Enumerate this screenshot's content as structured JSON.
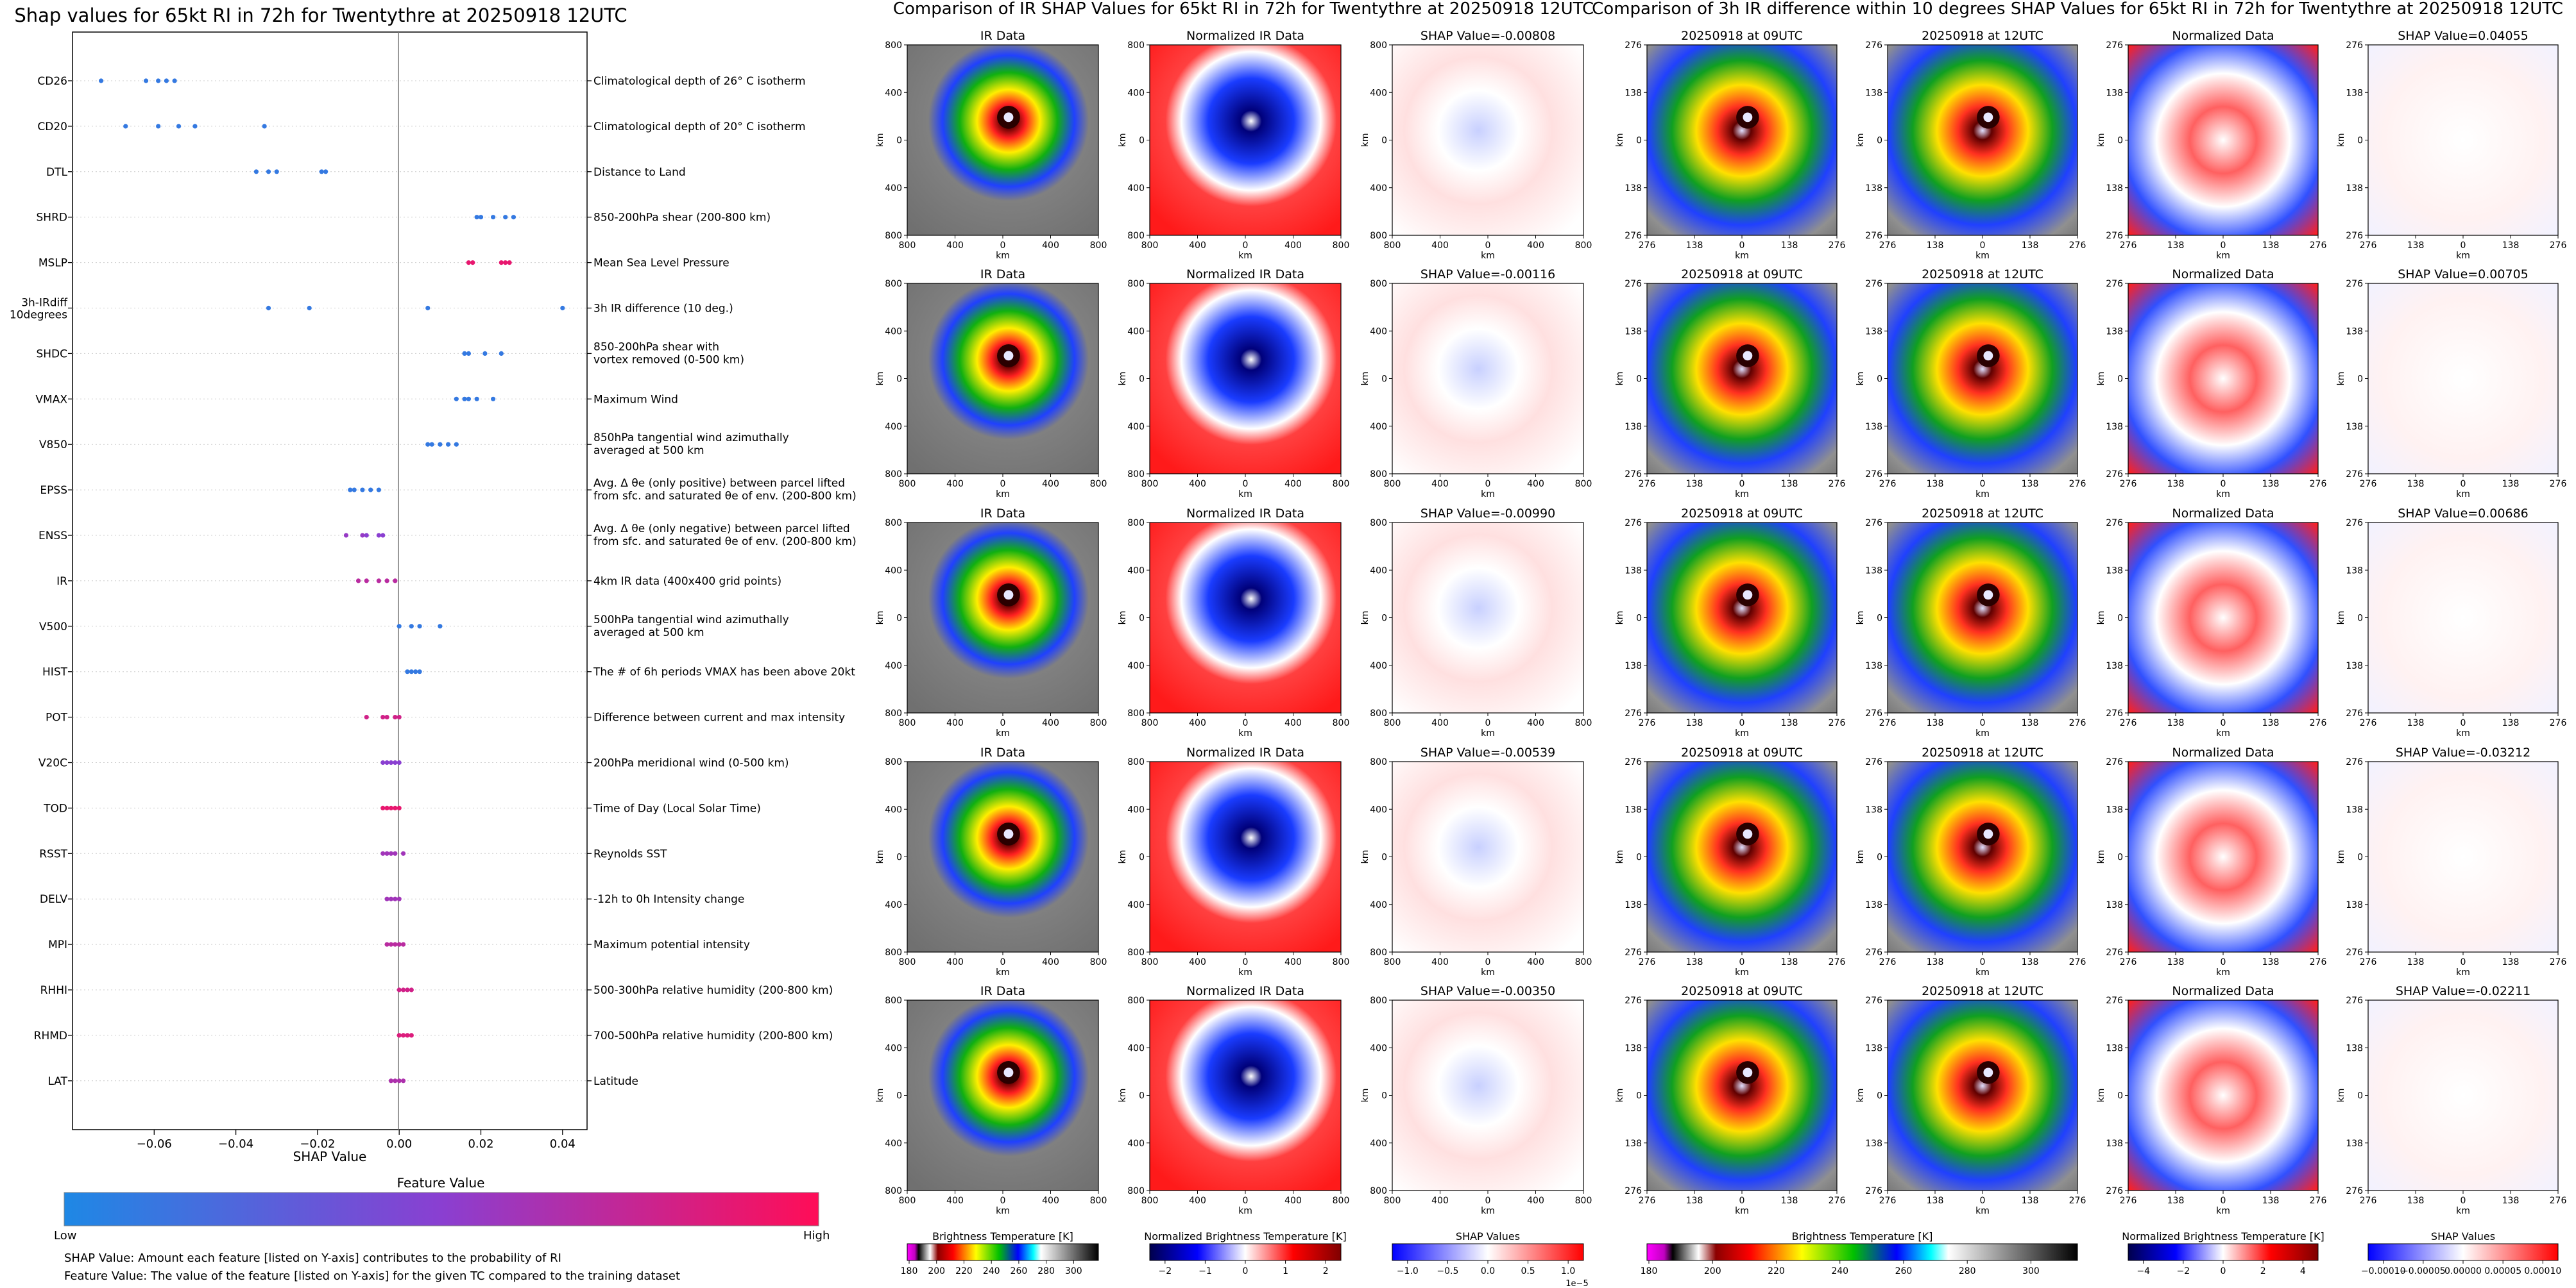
{
  "shap_panel": {
    "title": "Shap values for 65kt RI in 72h for Twentythre at 20250918 12UTC",
    "xlabel": "SHAP Value",
    "xticks": [
      "−0.06",
      "−0.04",
      "−0.02",
      "0.00",
      "0.02",
      "0.04"
    ],
    "colorbar_title": "Feature Value",
    "colorbar_low": "Low",
    "colorbar_high": "High",
    "colors": {
      "low": "#1e88e5",
      "mid": "#8a3fd1",
      "high": "#ff0d57"
    },
    "note1": "SHAP Value: Amount each feature [listed on Y-axis] contributes to the probability of RI",
    "note2": "Feature Value: The value of the feature [listed on Y-axis] for the given TC compared to the training dataset"
  },
  "chart_data": [
    {
      "type": "scatter",
      "title": "Shap values for 65kt RI in 72h for Twentythre at 20250918 12UTC",
      "xlabel": "SHAP Value",
      "xlim": [
        -0.08,
        0.046
      ],
      "features": [
        {
          "name": "CD26",
          "desc": [
            "Climatological depth of 26° C isotherm"
          ],
          "points": [
            [
              -0.073,
              0.1
            ],
            [
              -0.062,
              0.1
            ],
            [
              -0.059,
              0.1
            ],
            [
              -0.057,
              0.1
            ],
            [
              -0.055,
              0.1
            ]
          ]
        },
        {
          "name": "CD20",
          "desc": [
            "Climatological depth of 20° C isotherm"
          ],
          "points": [
            [
              -0.067,
              0.1
            ],
            [
              -0.059,
              0.1
            ],
            [
              -0.054,
              0.1
            ],
            [
              -0.05,
              0.1
            ],
            [
              -0.033,
              0.1
            ]
          ]
        },
        {
          "name": "DTL",
          "desc": [
            "Distance to Land"
          ],
          "points": [
            [
              -0.035,
              0.1
            ],
            [
              -0.032,
              0.1
            ],
            [
              -0.03,
              0.1
            ],
            [
              -0.019,
              0.1
            ],
            [
              -0.018,
              0.1
            ]
          ]
        },
        {
          "name": "SHRD",
          "desc": [
            "850-200hPa shear (200-800 km)"
          ],
          "points": [
            [
              0.019,
              0.1
            ],
            [
              0.02,
              0.1
            ],
            [
              0.023,
              0.1
            ],
            [
              0.026,
              0.1
            ],
            [
              0.028,
              0.1
            ]
          ]
        },
        {
          "name": "MSLP",
          "desc": [
            "Mean Sea Level Pressure"
          ],
          "points": [
            [
              0.017,
              0.9
            ],
            [
              0.018,
              0.9
            ],
            [
              0.025,
              0.9
            ],
            [
              0.026,
              0.9
            ],
            [
              0.027,
              0.9
            ]
          ]
        },
        {
          "name": "3h-IRdiff",
          "name2": "10degrees",
          "desc": [
            "3h IR difference (10 deg.)"
          ],
          "points": [
            [
              -0.032,
              0.1
            ],
            [
              -0.022,
              0.1
            ],
            [
              0.007,
              0.1
            ],
            [
              0.04,
              0.1
            ]
          ]
        },
        {
          "name": "SHDC",
          "desc": [
            "850-200hPa shear with",
            "vortex removed (0-500 km)"
          ],
          "points": [
            [
              0.016,
              0.1
            ],
            [
              0.017,
              0.1
            ],
            [
              0.021,
              0.1
            ],
            [
              0.025,
              0.1
            ]
          ]
        },
        {
          "name": "VMAX",
          "desc": [
            "Maximum Wind"
          ],
          "points": [
            [
              0.014,
              0.1
            ],
            [
              0.016,
              0.1
            ],
            [
              0.017,
              0.1
            ],
            [
              0.019,
              0.1
            ],
            [
              0.023,
              0.1
            ]
          ]
        },
        {
          "name": "V850",
          "desc": [
            "850hPa tangential wind azimuthally",
            "averaged at 500 km"
          ],
          "points": [
            [
              0.007,
              0.1
            ],
            [
              0.008,
              0.1
            ],
            [
              0.01,
              0.1
            ],
            [
              0.012,
              0.1
            ],
            [
              0.014,
              0.1
            ]
          ]
        },
        {
          "name": "EPSS",
          "desc": [
            "Avg. Δ θe (only positive) between parcel lifted",
            "from sfc. and saturated θe of env. (200-800 km)"
          ],
          "points": [
            [
              -0.012,
              0.1
            ],
            [
              -0.011,
              0.1
            ],
            [
              -0.009,
              0.1
            ],
            [
              -0.007,
              0.1
            ],
            [
              -0.005,
              0.1
            ]
          ]
        },
        {
          "name": "ENSS",
          "desc": [
            "Avg. Δ θe (only negative) between parcel lifted",
            "from sfc. and saturated θe of env. (200-800 km)"
          ],
          "points": [
            [
              -0.013,
              0.55
            ],
            [
              -0.009,
              0.55
            ],
            [
              -0.008,
              0.5
            ],
            [
              -0.005,
              0.5
            ],
            [
              -0.004,
              0.5
            ]
          ]
        },
        {
          "name": "IR",
          "desc": [
            "4km IR data (400x400 grid points)"
          ],
          "points": [
            [
              -0.01,
              0.7
            ],
            [
              -0.008,
              0.7
            ],
            [
              -0.005,
              0.7
            ],
            [
              -0.003,
              0.7
            ],
            [
              -0.001,
              0.7
            ]
          ]
        },
        {
          "name": "V500",
          "desc": [
            "500hPa tangential wind azimuthally",
            "averaged at 500 km"
          ],
          "points": [
            [
              0.0,
              0.1
            ],
            [
              0.003,
              0.1
            ],
            [
              0.005,
              0.1
            ],
            [
              0.01,
              0.1
            ]
          ]
        },
        {
          "name": "HIST",
          "desc": [
            "The # of 6h periods VMAX has been above 20kt"
          ],
          "points": [
            [
              0.002,
              0.1
            ],
            [
              0.003,
              0.1
            ],
            [
              0.004,
              0.1
            ],
            [
              0.005,
              0.1
            ]
          ]
        },
        {
          "name": "POT",
          "desc": [
            "Difference between current and max intensity"
          ],
          "points": [
            [
              -0.008,
              0.8
            ],
            [
              -0.004,
              0.8
            ],
            [
              -0.003,
              0.8
            ],
            [
              -0.001,
              0.8
            ],
            [
              0.0,
              0.8
            ]
          ]
        },
        {
          "name": "V20C",
          "desc": [
            "200hPa meridional wind (0-500 km)"
          ],
          "points": [
            [
              -0.004,
              0.5
            ],
            [
              -0.003,
              0.5
            ],
            [
              -0.002,
              0.5
            ],
            [
              -0.001,
              0.5
            ],
            [
              0.0,
              0.5
            ]
          ]
        },
        {
          "name": "TOD",
          "desc": [
            "Time of Day (Local Solar Time)"
          ],
          "points": [
            [
              -0.004,
              0.9
            ],
            [
              -0.003,
              0.9
            ],
            [
              -0.002,
              0.9
            ],
            [
              -0.001,
              0.9
            ],
            [
              0.0,
              0.9
            ]
          ]
        },
        {
          "name": "RSST",
          "desc": [
            "Reynolds SST"
          ],
          "points": [
            [
              -0.004,
              0.6
            ],
            [
              -0.003,
              0.6
            ],
            [
              -0.002,
              0.6
            ],
            [
              -0.001,
              0.6
            ],
            [
              0.001,
              0.6
            ]
          ]
        },
        {
          "name": "DELV",
          "desc": [
            "-12h to 0h Intensity change"
          ],
          "points": [
            [
              -0.003,
              0.6
            ],
            [
              -0.002,
              0.6
            ],
            [
              -0.001,
              0.6
            ],
            [
              0.0,
              0.6
            ]
          ]
        },
        {
          "name": "MPI",
          "desc": [
            "Maximum potential intensity"
          ],
          "points": [
            [
              -0.003,
              0.7
            ],
            [
              -0.002,
              0.7
            ],
            [
              -0.001,
              0.7
            ],
            [
              0.0,
              0.7
            ],
            [
              0.001,
              0.7
            ]
          ]
        },
        {
          "name": "RHHI",
          "desc": [
            "500-300hPa relative humidity (200-800 km)"
          ],
          "points": [
            [
              0.0,
              0.8
            ],
            [
              0.001,
              0.8
            ],
            [
              0.002,
              0.8
            ],
            [
              0.003,
              0.8
            ]
          ]
        },
        {
          "name": "RHMD",
          "desc": [
            "700-500hPa relative humidity (200-800 km)"
          ],
          "points": [
            [
              0.0,
              0.85
            ],
            [
              0.001,
              0.85
            ],
            [
              0.002,
              0.85
            ],
            [
              0.003,
              0.85
            ]
          ]
        },
        {
          "name": "LAT",
          "desc": [
            "Latitude"
          ],
          "points": [
            [
              -0.002,
              0.65
            ],
            [
              -0.001,
              0.65
            ],
            [
              0.0,
              0.65
            ],
            [
              0.001,
              0.65
            ]
          ]
        }
      ]
    },
    {
      "type": "heatmap",
      "title": "Comparison of IR SHAP Values for 65kt RI in 72h for Twentythre at 20250918 12UTC",
      "column_titles": [
        "IR Data",
        "Normalized IR Data"
      ],
      "row_shap_values": [
        "SHAP Value=-0.00808",
        "SHAP Value=-0.00116",
        "SHAP Value=-0.00990",
        "SHAP Value=-0.00539",
        "SHAP Value=-0.00350"
      ],
      "axis_label": "km",
      "ticks_x": [
        "800",
        "400",
        "0",
        "400",
        "800"
      ],
      "ticks_y": [
        "800",
        "400",
        "0",
        "400",
        "800"
      ],
      "colorbars": [
        {
          "label": "Brightness Temperature [K]",
          "ticks": [
            "180",
            "200",
            "220",
            "240",
            "260",
            "280",
            "300"
          ]
        },
        {
          "label": "Normalized Brightness Temperature [K]",
          "ticks": [
            "−2",
            "−1",
            "0",
            "1",
            "2"
          ]
        },
        {
          "label": "SHAP Values",
          "ticks": [
            "−1.0",
            "−0.5",
            "0.0",
            "0.5",
            "1.0"
          ],
          "offset": "1e−5"
        }
      ]
    },
    {
      "type": "heatmap",
      "title": "Comparison of 3h IR difference within 10 degrees SHAP Values for 65kt RI in 72h for Twentythre at 20250918 12UTC",
      "column_titles": [
        "20250918 at 09UTC",
        "20250918 at 12UTC",
        "Normalized Data"
      ],
      "row_shap_values": [
        "SHAP Value=0.04055",
        "SHAP Value=0.00705",
        "SHAP Value=0.00686",
        "SHAP Value=-0.03212",
        "SHAP Value=-0.02211"
      ],
      "axis_label": "km",
      "ticks_x": [
        "276",
        "138",
        "0",
        "138",
        "276"
      ],
      "ticks_y": [
        "276",
        "138",
        "0",
        "138",
        "276"
      ],
      "colorbars": [
        {
          "label": "Brightness Temperature [K]",
          "ticks": [
            "180",
            "200",
            "220",
            "240",
            "260",
            "280",
            "300"
          ]
        },
        {
          "label": "Normalized Brightness Temperature [K]",
          "ticks": [
            "−4",
            "−2",
            "0",
            "2",
            "4"
          ]
        },
        {
          "label": "SHAP Values",
          "ticks": [
            "−0.00010",
            "−0.00005",
            "0.00000",
            "0.00005",
            "0.00010"
          ]
        }
      ]
    }
  ]
}
